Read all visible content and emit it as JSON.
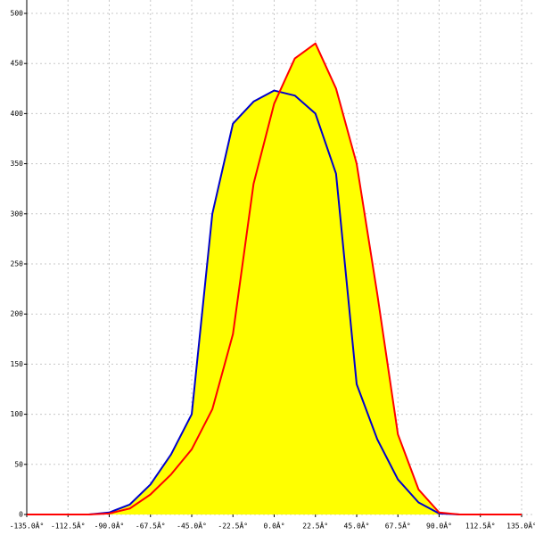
{
  "chart_data": {
    "type": "area",
    "x": [
      -135,
      -123.75,
      -112.5,
      -101.25,
      -90,
      -78.75,
      -67.5,
      -56.25,
      -45,
      -33.75,
      -22.5,
      -11.25,
      0,
      11.25,
      22.5,
      33.75,
      45,
      56.25,
      67.5,
      78.75,
      90,
      101.25,
      112.5,
      123.75,
      135
    ],
    "series": [
      {
        "color": "#0000cc",
        "values": [
          0,
          0,
          0,
          0,
          2,
          10,
          30,
          60,
          100,
          300,
          390,
          412,
          423,
          418,
          400,
          340,
          130,
          75,
          35,
          12,
          1,
          0,
          0,
          0,
          0
        ]
      },
      {
        "color": "#ff0000",
        "values": [
          0,
          0,
          0,
          0,
          1,
          6,
          20,
          40,
          65,
          105,
          180,
          330,
          410,
          455,
          470,
          425,
          350,
          220,
          80,
          25,
          2,
          0,
          0,
          0,
          0
        ]
      }
    ],
    "fill_color": "#ffff00",
    "xlim": [
      -135,
      135
    ],
    "ylim": [
      0,
      500
    ],
    "xticks": [
      {
        "value": -135,
        "label": "-135.0Â°"
      },
      {
        "value": -112.5,
        "label": "-112.5Â°"
      },
      {
        "value": -90,
        "label": "-90.0Â°"
      },
      {
        "value": -67.5,
        "label": "-67.5Â°"
      },
      {
        "value": -45,
        "label": "-45.0Â°"
      },
      {
        "value": -22.5,
        "label": "-22.5Â°"
      },
      {
        "value": 0,
        "label": "0.0Â°"
      },
      {
        "value": 22.5,
        "label": "22.5Â°"
      },
      {
        "value": 45,
        "label": "45.0Â°"
      },
      {
        "value": 67.5,
        "label": "67.5Â°"
      },
      {
        "value": 90,
        "label": "90.0Â°"
      },
      {
        "value": 112.5,
        "label": "112.5Â°"
      },
      {
        "value": 135,
        "label": "135.0Â°"
      }
    ],
    "yticks": [
      0,
      50,
      100,
      150,
      200,
      250,
      300,
      350,
      400,
      450,
      500
    ],
    "grid": true
  }
}
